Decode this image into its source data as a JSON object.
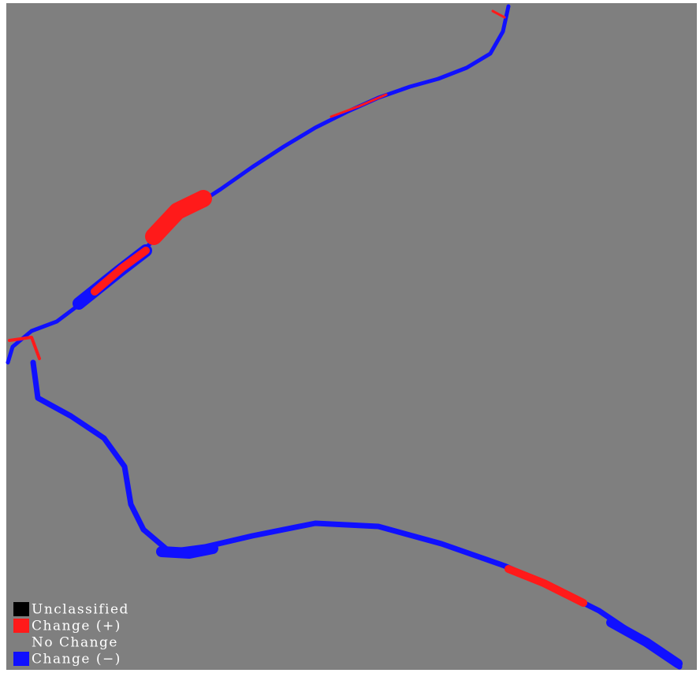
{
  "legend": {
    "items": [
      {
        "label": "Unclassified",
        "color": "#000000"
      },
      {
        "label": "Change (+)",
        "color": "#ff1a1a"
      },
      {
        "label": "No Change",
        "color": "#7f7f7f"
      },
      {
        "label": "Change (−)",
        "color": "#1010ff"
      }
    ]
  }
}
